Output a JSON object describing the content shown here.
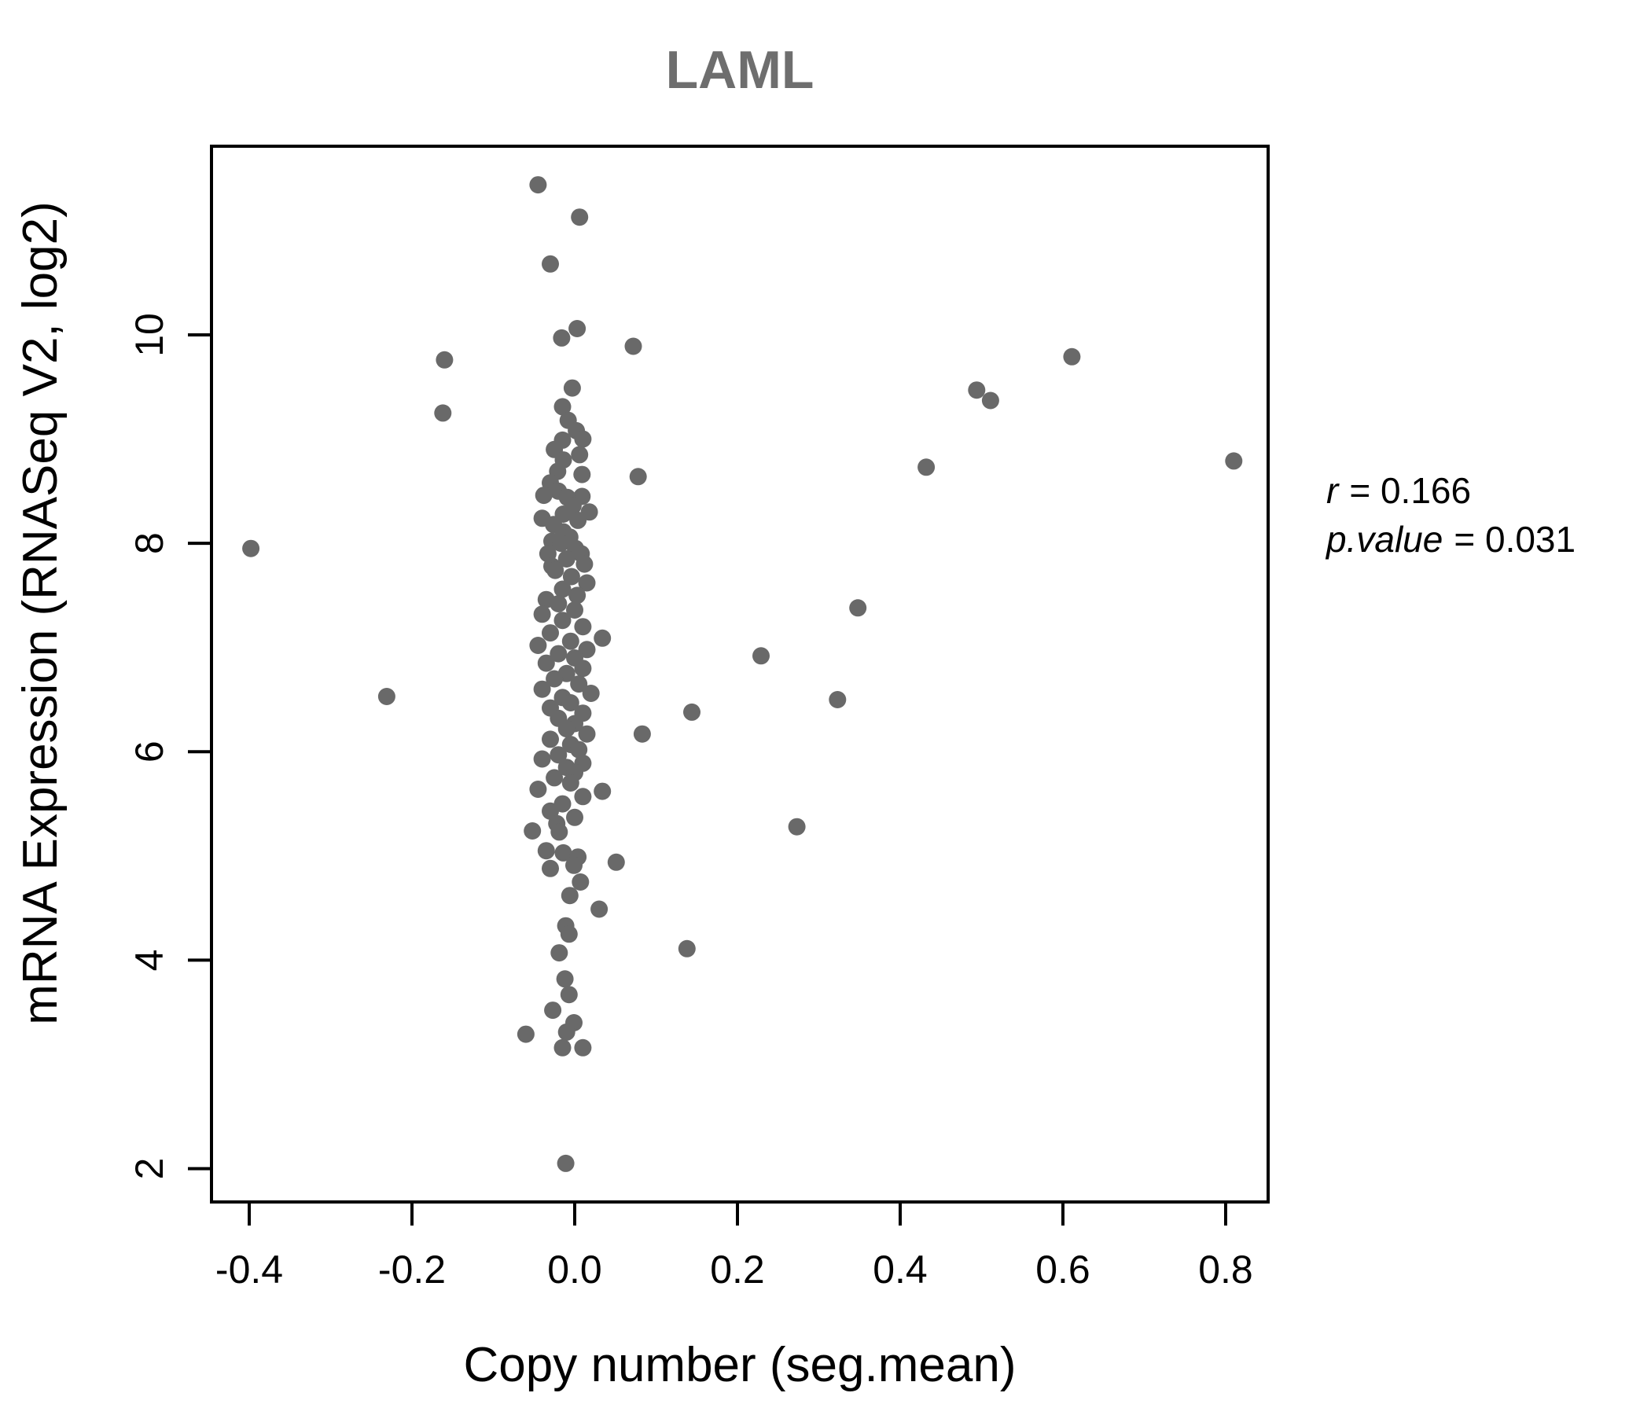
{
  "title": "LAML",
  "colors": {
    "title": "#6e6e6e",
    "points": "#696969",
    "axis": "#000000",
    "background": "#ffffff"
  },
  "annotation": {
    "r_name": "r",
    "r_eq": "= 0.166",
    "p_name": "p.value",
    "p_eq": "= 0.031"
  },
  "chart_data": {
    "type": "scatter",
    "title": "LAML",
    "xlabel": "Copy number (seg.mean)",
    "ylabel": "mRNA Expression (RNASeq V2, log2)",
    "xlim": [
      -0.4464,
      0.8522
    ],
    "ylim": [
      1.68,
      11.81
    ],
    "x_ticks": [
      -0.4,
      -0.2,
      0.0,
      0.2,
      0.4,
      0.6,
      0.8
    ],
    "x_tick_labels": [
      "-0.4",
      "-0.2",
      "0.0",
      "0.2",
      "0.4",
      "0.6",
      "0.8"
    ],
    "y_ticks": [
      2,
      4,
      6,
      8,
      10
    ],
    "y_tick_labels": [
      "2",
      "4",
      "6",
      "8",
      "10"
    ],
    "grid": false,
    "legend": null,
    "marker": "filled-circle",
    "point_color": "#696969",
    "correlation": {
      "r": 0.166,
      "p_value": 0.031
    },
    "points": [
      [
        -0.045,
        11.44
      ],
      [
        0.006,
        11.13
      ],
      [
        -0.03,
        10.68
      ],
      [
        0.003,
        10.06
      ],
      [
        -0.016,
        9.97
      ],
      [
        0.072,
        9.89
      ],
      [
        -0.16,
        9.76
      ],
      [
        -0.162,
        9.25
      ],
      [
        -0.003,
        9.49
      ],
      [
        -0.015,
        9.31
      ],
      [
        -0.008,
        9.18
      ],
      [
        0.002,
        9.08
      ],
      [
        0.01,
        9.0
      ],
      [
        -0.015,
        8.99
      ],
      [
        -0.025,
        8.9
      ],
      [
        0.006,
        8.85
      ],
      [
        -0.014,
        8.8
      ],
      [
        -0.021,
        8.69
      ],
      [
        0.009,
        8.66
      ],
      [
        0.078,
        8.64
      ],
      [
        -0.03,
        8.58
      ],
      [
        -0.02,
        8.5
      ],
      [
        -0.038,
        8.46
      ],
      [
        0.009,
        8.45
      ],
      [
        -0.009,
        8.44
      ],
      [
        -0.002,
        8.36
      ],
      [
        0.018,
        8.3
      ],
      [
        -0.014,
        8.28
      ],
      [
        -0.04,
        8.24
      ],
      [
        0.004,
        8.22
      ],
      [
        -0.026,
        8.18
      ],
      [
        -0.014,
        8.11
      ],
      [
        -0.006,
        8.06
      ],
      [
        -0.028,
        8.02
      ],
      [
        -0.017,
        8.0
      ],
      [
        0.001,
        7.95
      ],
      [
        -0.033,
        7.9
      ],
      [
        0.008,
        7.9
      ],
      [
        -0.01,
        7.85
      ],
      [
        0.012,
        7.8
      ],
      [
        -0.028,
        7.78
      ],
      [
        -0.024,
        7.74
      ],
      [
        -0.004,
        7.68
      ],
      [
        0.015,
        7.62
      ],
      [
        -0.015,
        7.56
      ],
      [
        0.003,
        7.5
      ],
      [
        -0.035,
        7.46
      ],
      [
        -0.02,
        7.42
      ],
      [
        0.0,
        7.36
      ],
      [
        -0.04,
        7.32
      ],
      [
        -0.015,
        7.26
      ],
      [
        0.01,
        7.2
      ],
      [
        -0.03,
        7.14
      ],
      [
        0.034,
        7.09
      ],
      [
        -0.005,
        7.06
      ],
      [
        -0.045,
        7.02
      ],
      [
        0.015,
        6.98
      ],
      [
        -0.02,
        6.94
      ],
      [
        0.0,
        6.9
      ],
      [
        -0.035,
        6.85
      ],
      [
        0.01,
        6.8
      ],
      [
        -0.01,
        6.75
      ],
      [
        -0.025,
        6.7
      ],
      [
        0.005,
        6.65
      ],
      [
        -0.04,
        6.6
      ],
      [
        0.02,
        6.56
      ],
      [
        -0.015,
        6.52
      ],
      [
        -0.005,
        6.47
      ],
      [
        -0.03,
        6.42
      ],
      [
        0.01,
        6.37
      ],
      [
        -0.02,
        6.32
      ],
      [
        0.0,
        6.27
      ],
      [
        -0.01,
        6.22
      ],
      [
        0.015,
        6.17
      ],
      [
        -0.03,
        6.12
      ],
      [
        -0.005,
        6.07
      ],
      [
        0.005,
        6.02
      ],
      [
        -0.02,
        5.97
      ],
      [
        -0.04,
        5.93
      ],
      [
        0.01,
        5.89
      ],
      [
        -0.01,
        5.85
      ],
      [
        0.0,
        5.8
      ],
      [
        -0.025,
        5.75
      ],
      [
        -0.005,
        5.7
      ],
      [
        -0.045,
        5.64
      ],
      [
        0.034,
        5.62
      ],
      [
        0.01,
        5.57
      ],
      [
        -0.015,
        5.5
      ],
      [
        -0.03,
        5.43
      ],
      [
        0.0,
        5.37
      ],
      [
        -0.022,
        5.31
      ],
      [
        -0.052,
        5.24
      ],
      [
        -0.019,
        5.23
      ],
      [
        -0.035,
        5.05
      ],
      [
        -0.014,
        5.03
      ],
      [
        0.004,
        4.99
      ],
      [
        0.051,
        4.94
      ],
      [
        -0.001,
        4.91
      ],
      [
        -0.03,
        4.88
      ],
      [
        0.007,
        4.75
      ],
      [
        -0.006,
        4.62
      ],
      [
        0.03,
        4.49
      ],
      [
        -0.011,
        4.33
      ],
      [
        -0.007,
        4.25
      ],
      [
        -0.019,
        4.07
      ],
      [
        -0.012,
        3.82
      ],
      [
        -0.007,
        3.67
      ],
      [
        -0.027,
        3.52
      ],
      [
        -0.001,
        3.4
      ],
      [
        -0.01,
        3.31
      ],
      [
        -0.06,
        3.29
      ],
      [
        -0.015,
        3.16
      ],
      [
        0.01,
        3.16
      ],
      [
        -0.011,
        2.05
      ],
      [
        0.144,
        6.38
      ],
      [
        0.138,
        4.11
      ],
      [
        0.083,
        6.17
      ],
      [
        0.229,
        6.92
      ],
      [
        0.273,
        5.28
      ],
      [
        0.323,
        6.5
      ],
      [
        0.348,
        7.38
      ],
      [
        0.432,
        8.73
      ],
      [
        0.494,
        9.47
      ],
      [
        0.511,
        9.37
      ],
      [
        0.611,
        9.79
      ],
      [
        0.81,
        8.79
      ],
      [
        -0.398,
        7.95
      ],
      [
        -0.231,
        6.53
      ]
    ]
  }
}
